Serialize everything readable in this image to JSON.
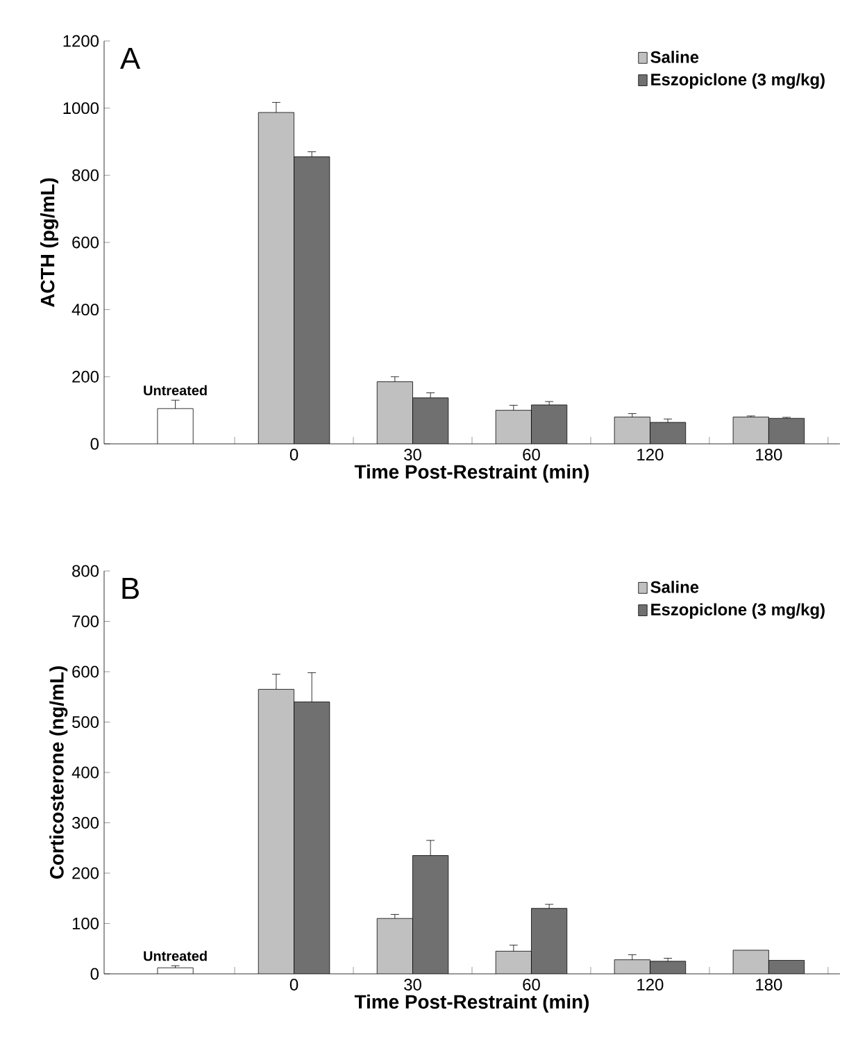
{
  "chart_data": [
    {
      "type": "bar",
      "title": "A",
      "xlabel": "Time Post-Restraint (min)",
      "ylabel": "ACTH (pg/mL)",
      "categories": [
        null,
        "0",
        "30",
        "60",
        "120",
        "180"
      ],
      "ylim": [
        0,
        1200
      ],
      "yticks": [
        0,
        200,
        400,
        600,
        800,
        1000,
        1200
      ],
      "legend": "top right",
      "series": [
        {
          "name": "Untreated",
          "color": "#ffffff",
          "values": [
            105,
            null,
            null,
            null,
            null,
            null
          ],
          "errors": [
            25,
            null,
            null,
            null,
            null,
            null
          ]
        },
        {
          "name": "Saline",
          "color": "#c0c0c0",
          "values": [
            null,
            987,
            185,
            100,
            80,
            80
          ],
          "errors": [
            null,
            30,
            15,
            15,
            10,
            3
          ]
        },
        {
          "name": "Eszopiclone (3 mg/kg)",
          "color": "#707070",
          "values": [
            null,
            855,
            137,
            116,
            64,
            76
          ],
          "errors": [
            null,
            15,
            15,
            10,
            10,
            3
          ]
        }
      ]
    },
    {
      "type": "bar",
      "title": "B",
      "xlabel": "Time Post-Restraint (min)",
      "ylabel": "Corticosterone (ng/mL)",
      "categories": [
        null,
        "0",
        "30",
        "60",
        "120",
        "180"
      ],
      "ylim": [
        0,
        800
      ],
      "yticks": [
        0,
        100,
        200,
        300,
        400,
        500,
        600,
        700,
        800
      ],
      "legend": "top right",
      "series": [
        {
          "name": "Untreated",
          "color": "#ffffff",
          "values": [
            12,
            null,
            null,
            null,
            null,
            null
          ],
          "errors": [
            4,
            null,
            null,
            null,
            null,
            null
          ]
        },
        {
          "name": "Saline",
          "color": "#c0c0c0",
          "values": [
            null,
            565,
            110,
            45,
            28,
            47
          ],
          "errors": [
            null,
            30,
            8,
            12,
            10,
            null
          ]
        },
        {
          "name": "Eszopiclone (3 mg/kg)",
          "color": "#707070",
          "values": [
            null,
            540,
            235,
            130,
            25,
            27
          ],
          "errors": [
            null,
            58,
            30,
            8,
            6,
            null
          ]
        }
      ]
    }
  ]
}
